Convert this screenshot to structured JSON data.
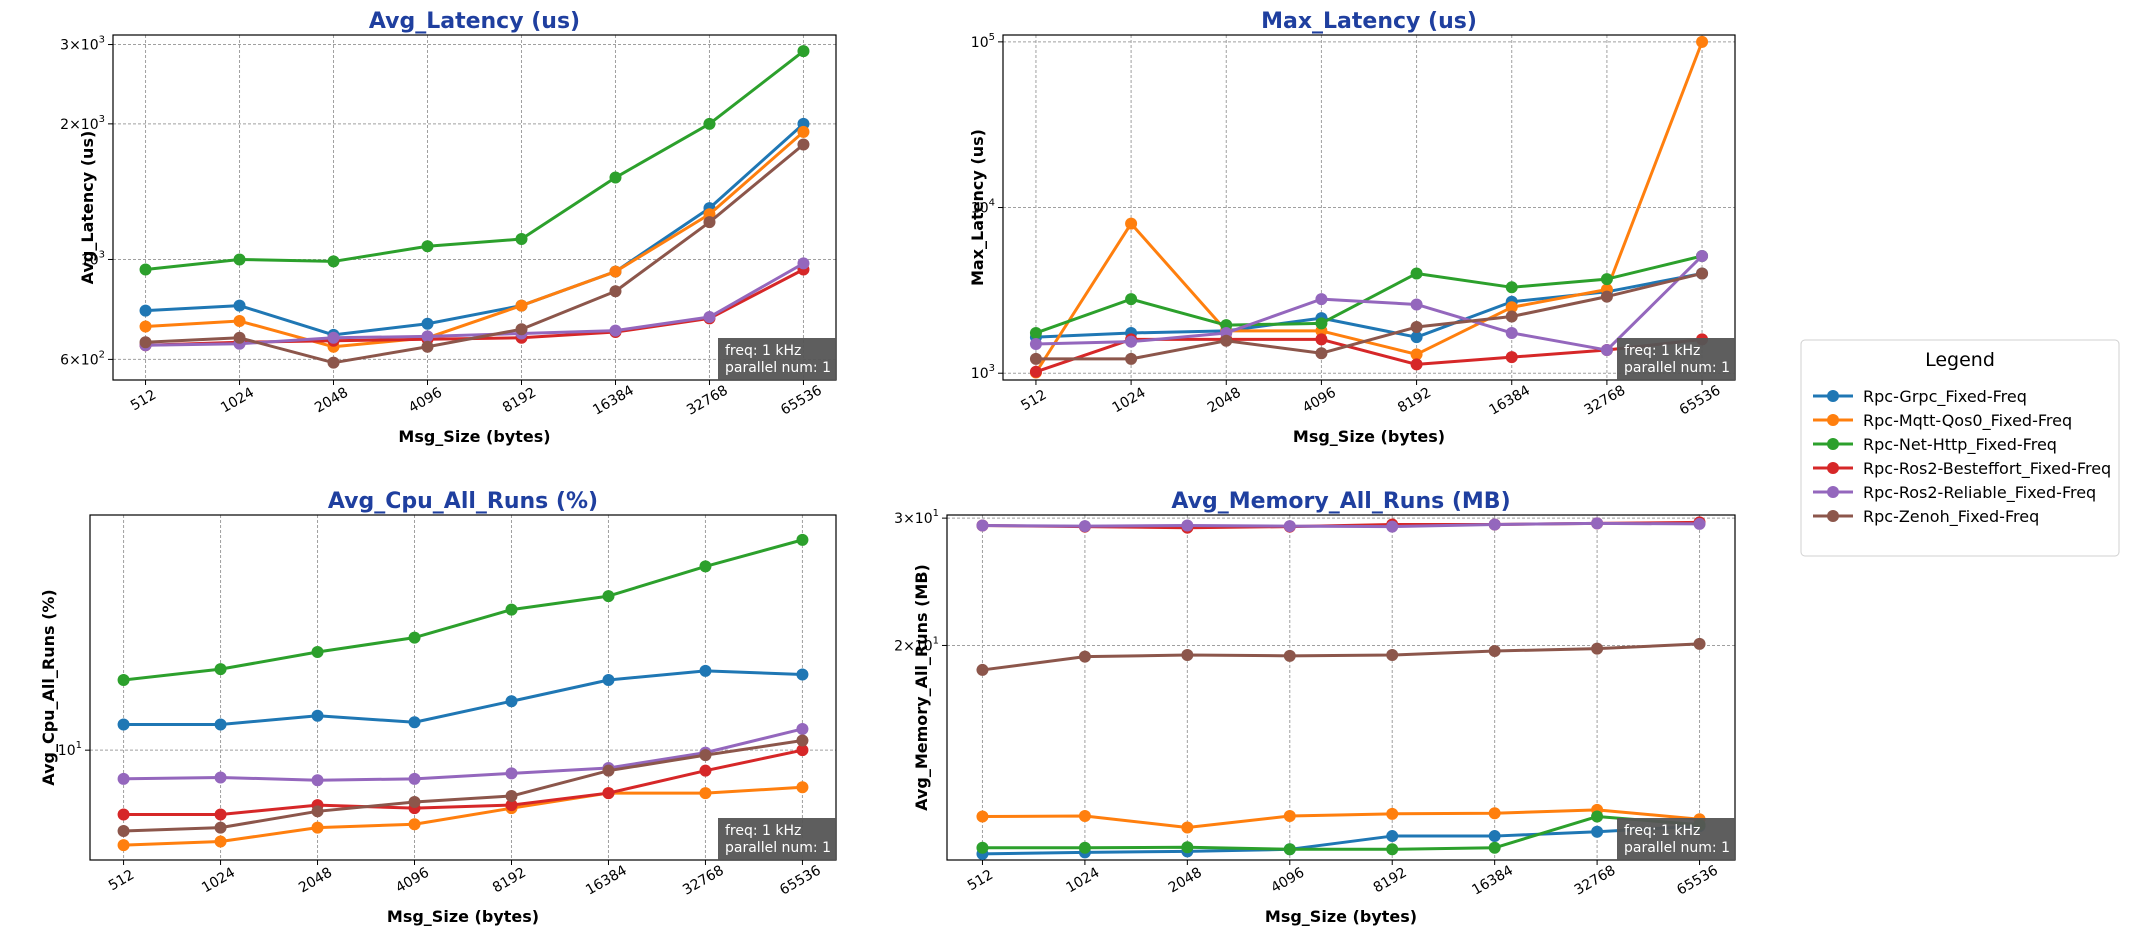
{
  "colors": {
    "title": "#1f3f9f",
    "grid": "#a0a0a0",
    "annotation_bg": "#555555",
    "annotation_text": "#ffffff",
    "series": [
      "#1f77b4",
      "#ff7f0e",
      "#2ca02c",
      "#d62728",
      "#9467bd",
      "#8c564b"
    ]
  },
  "legend": {
    "title": "Legend",
    "placement": "right-center",
    "entries": [
      "Rpc-Grpc_Fixed-Freq",
      "Rpc-Mqtt-Qos0_Fixed-Freq",
      "Rpc-Net-Http_Fixed-Freq",
      "Rpc-Ros2-Besteffort_Fixed-Freq",
      "Rpc-Ros2-Reliable_Fixed-Freq",
      "Rpc-Zenoh_Fixed-Freq"
    ]
  },
  "chart_data": [
    {
      "type": "line",
      "title": "Avg_Latency (us)",
      "xlabel": "Msg_Size (bytes)",
      "ylabel": "Avg_Latency (us)",
      "yscale": "log",
      "ylim": [
        540,
        3150
      ],
      "grid": true,
      "x": [
        "512",
        "1024",
        "2048",
        "4096",
        "8192",
        "16384",
        "32768",
        "65536"
      ],
      "yticks": [
        {
          "value": 600,
          "mantissa": "6",
          "exp": "2"
        },
        {
          "value": 1000,
          "mantissa": "",
          "exp": "3"
        },
        {
          "value": 2000,
          "mantissa": "2",
          "exp": "3"
        },
        {
          "value": 3000,
          "mantissa": "3",
          "exp": "3"
        }
      ],
      "annotation": [
        "freq: 1 kHz",
        "parallel num: 1"
      ],
      "series": [
        {
          "name": "Rpc-Grpc_Fixed-Freq",
          "values": [
            770,
            790,
            680,
            720,
            790,
            940,
            1300,
            2000
          ]
        },
        {
          "name": "Rpc-Mqtt-Qos0_Fixed-Freq",
          "values": [
            710,
            730,
            640,
            670,
            790,
            940,
            1260,
            1920
          ]
        },
        {
          "name": "Rpc-Net-Http_Fixed-Freq",
          "values": [
            950,
            1000,
            990,
            1070,
            1110,
            1520,
            2000,
            2900
          ]
        },
        {
          "name": "Rpc-Ros2-Besteffort_Fixed-Freq",
          "values": [
            645,
            655,
            660,
            665,
            670,
            690,
            740,
            950
          ]
        },
        {
          "name": "Rpc-Ros2-Reliable_Fixed-Freq",
          "values": [
            645,
            650,
            670,
            675,
            685,
            695,
            745,
            980
          ]
        },
        {
          "name": "Rpc-Zenoh_Fixed-Freq",
          "values": [
            655,
            670,
            590,
            640,
            700,
            850,
            1210,
            1800
          ]
        }
      ]
    },
    {
      "type": "line",
      "title": "Max_Latency (us)",
      "xlabel": "Msg_Size (bytes)",
      "ylabel": "Max_Latency (us)",
      "yscale": "log",
      "ylim": [
        910,
        110000
      ],
      "grid": true,
      "x": [
        "512",
        "1024",
        "2048",
        "4096",
        "8192",
        "16384",
        "32768",
        "65536"
      ],
      "yticks": [
        {
          "value": 1000,
          "mantissa": "",
          "exp": "3"
        },
        {
          "value": 10000,
          "mantissa": "",
          "exp": "4"
        },
        {
          "value": 100000,
          "mantissa": "",
          "exp": "5"
        }
      ],
      "annotation": [
        "freq: 1 kHz",
        "parallel num: 1"
      ],
      "series": [
        {
          "name": "Rpc-Grpc_Fixed-Freq",
          "values": [
            1650,
            1750,
            1800,
            2150,
            1650,
            2700,
            3100,
            4000
          ]
        },
        {
          "name": "Rpc-Mqtt-Qos0_Fixed-Freq",
          "values": [
            1010,
            8000,
            1800,
            1800,
            1300,
            2500,
            3200,
            100000
          ]
        },
        {
          "name": "Rpc-Net-Http_Fixed-Freq",
          "values": [
            1750,
            2800,
            1950,
            2000,
            4000,
            3300,
            3700,
            5100
          ]
        },
        {
          "name": "Rpc-Ros2-Besteffort_Fixed-Freq",
          "values": [
            1020,
            1600,
            1600,
            1600,
            1130,
            1250,
            1380,
            1600
          ]
        },
        {
          "name": "Rpc-Ros2-Reliable_Fixed-Freq",
          "values": [
            1500,
            1550,
            1750,
            2800,
            2600,
            1750,
            1380,
            5100
          ]
        },
        {
          "name": "Rpc-Zenoh_Fixed-Freq",
          "values": [
            1220,
            1220,
            1570,
            1320,
            1900,
            2200,
            2900,
            4000
          ]
        }
      ]
    },
    {
      "type": "line",
      "title": "Avg_Cpu_All_Runs (%)",
      "xlabel": "Msg_Size (bytes)",
      "ylabel": "Avg_Cpu_All_Runs (%)",
      "yscale": "log",
      "ylim": [
        6.4,
        26
      ],
      "grid": true,
      "x": [
        "512",
        "1024",
        "2048",
        "4096",
        "8192",
        "16384",
        "32768",
        "65536"
      ],
      "yticks": [
        {
          "value": 10,
          "mantissa": "",
          "exp": "1"
        }
      ],
      "annotation": [
        "freq: 1 kHz",
        "parallel num: 1"
      ],
      "series": [
        {
          "name": "Rpc-Grpc_Fixed-Freq",
          "values": [
            11.1,
            11.1,
            11.5,
            11.2,
            12.2,
            13.3,
            13.8,
            13.6
          ]
        },
        {
          "name": "Rpc-Mqtt-Qos0_Fixed-Freq",
          "values": [
            6.8,
            6.9,
            7.3,
            7.4,
            7.9,
            8.4,
            8.4,
            8.6
          ]
        },
        {
          "name": "Rpc-Net-Http_Fixed-Freq",
          "values": [
            13.3,
            13.9,
            14.9,
            15.8,
            17.7,
            18.7,
            21.1,
            23.5
          ]
        },
        {
          "name": "Rpc-Ros2-Besteffort_Fixed-Freq",
          "values": [
            7.7,
            7.7,
            8.0,
            7.9,
            8.0,
            8.4,
            9.2,
            10.0
          ]
        },
        {
          "name": "Rpc-Ros2-Reliable_Fixed-Freq",
          "values": [
            8.9,
            8.95,
            8.85,
            8.9,
            9.1,
            9.3,
            9.9,
            10.9
          ]
        },
        {
          "name": "Rpc-Zenoh_Fixed-Freq",
          "values": [
            7.2,
            7.3,
            7.8,
            8.1,
            8.3,
            9.2,
            9.8,
            10.4
          ]
        }
      ]
    },
    {
      "type": "line",
      "title": "Avg_Memory_All_Runs (MB)",
      "xlabel": "Msg_Size (bytes)",
      "ylabel": "Avg_Memory_All_Runs (MB)",
      "yscale": "log",
      "ylim": [
        10.1,
        30.3
      ],
      "grid": true,
      "x": [
        "512",
        "1024",
        "2048",
        "4096",
        "8192",
        "16384",
        "32768",
        "65536"
      ],
      "yticks": [
        {
          "value": 20,
          "mantissa": "2",
          "exp": "1"
        },
        {
          "value": 30,
          "mantissa": "3",
          "exp": "1"
        }
      ],
      "annotation": [
        "freq: 1 kHz",
        "parallel num: 1"
      ],
      "series": [
        {
          "name": "Rpc-Grpc_Fixed-Freq",
          "values": [
            10.3,
            10.35,
            10.38,
            10.45,
            10.9,
            10.9,
            11.05,
            11.25
          ]
        },
        {
          "name": "Rpc-Mqtt-Qos0_Fixed-Freq",
          "values": [
            11.6,
            11.62,
            11.2,
            11.62,
            11.7,
            11.72,
            11.85,
            11.5
          ]
        },
        {
          "name": "Rpc-Net-Http_Fixed-Freq",
          "values": [
            10.5,
            10.5,
            10.52,
            10.45,
            10.45,
            10.5,
            11.6,
            11.3
          ]
        },
        {
          "name": "Rpc-Ros2-Besteffort_Fixed-Freq",
          "values": [
            29.3,
            29.2,
            29.1,
            29.2,
            29.4,
            29.4,
            29.5,
            29.6
          ]
        },
        {
          "name": "Rpc-Ros2-Reliable_Fixed-Freq",
          "values": [
            29.3,
            29.25,
            29.3,
            29.25,
            29.2,
            29.4,
            29.5,
            29.45
          ]
        },
        {
          "name": "Rpc-Zenoh_Fixed-Freq",
          "values": [
            18.5,
            19.3,
            19.4,
            19.35,
            19.4,
            19.65,
            19.8,
            20.1
          ]
        }
      ]
    }
  ]
}
